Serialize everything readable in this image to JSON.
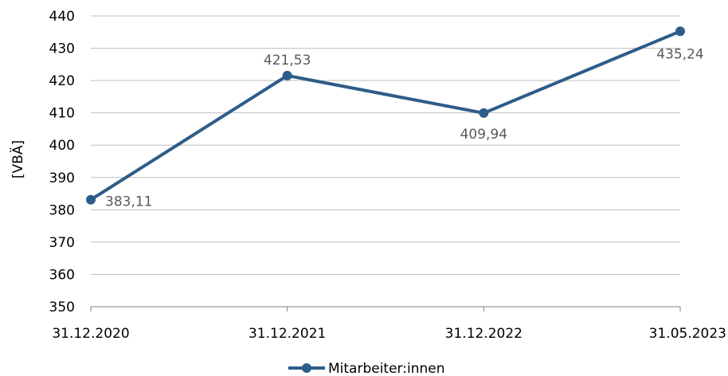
{
  "chart_data": {
    "type": "line",
    "categories": [
      "31.12.2020",
      "31.12.2021",
      "31.12.2022",
      "31.05.2023"
    ],
    "series": [
      {
        "name": "Mitarbeiter:innen",
        "values": [
          383.11,
          421.53,
          409.94,
          435.24
        ],
        "labels": [
          "383,11",
          "421,53",
          "409,94",
          "435,24"
        ],
        "color": "#2E5C8A"
      }
    ],
    "ylabel": "[VBÄ]",
    "ylim": [
      350,
      440
    ],
    "yticks": [
      350,
      360,
      370,
      380,
      390,
      400,
      410,
      420,
      430,
      440
    ],
    "grid": true,
    "legend": "bottom-center",
    "gridColor": "#BFBFBF",
    "axisColor": "#808080"
  }
}
